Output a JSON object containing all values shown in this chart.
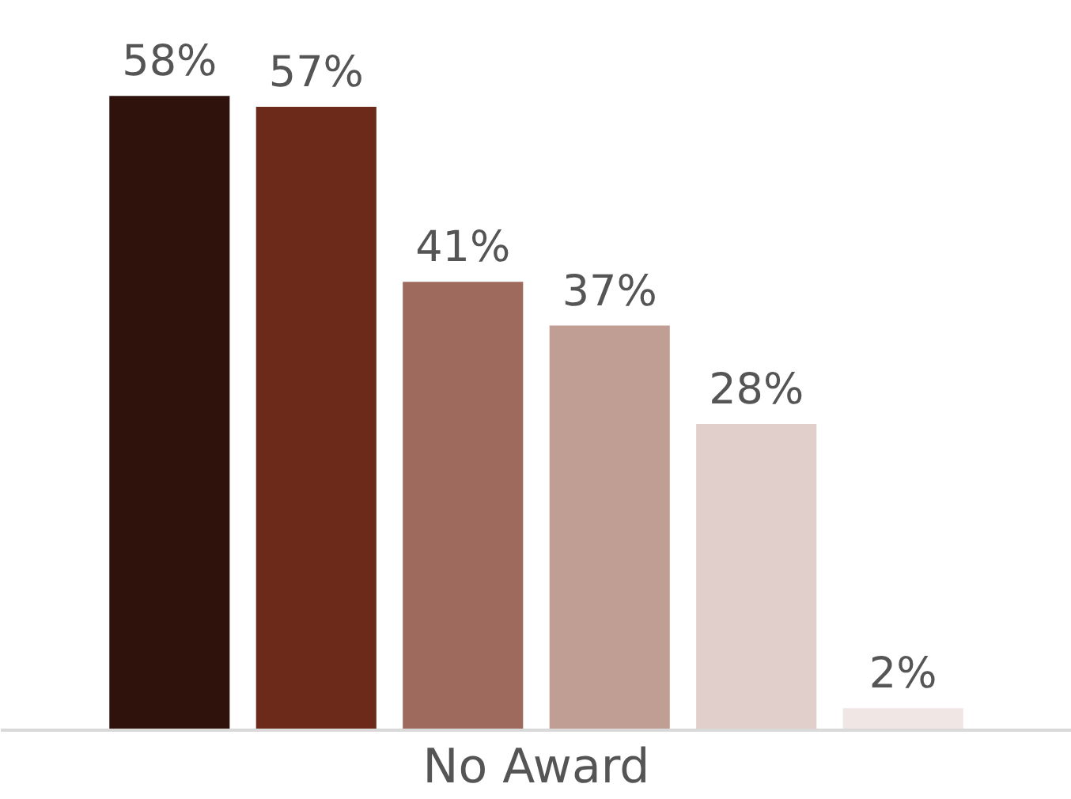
{
  "chart_data": {
    "type": "bar",
    "xlabel": "No Award",
    "categories": [
      null,
      null,
      null,
      null,
      null,
      null
    ],
    "data_labels": true,
    "values": [
      58,
      57,
      41,
      37,
      28,
      2
    ],
    "value_labels": [
      "58%",
      "57%",
      "41%",
      "37%",
      "28%",
      "2%"
    ],
    "colors": [
      "#2e120b",
      "#6b2a1a",
      "#9e6a5e",
      "#c09e94",
      "#e0cfca",
      "#f0e6e3"
    ]
  }
}
